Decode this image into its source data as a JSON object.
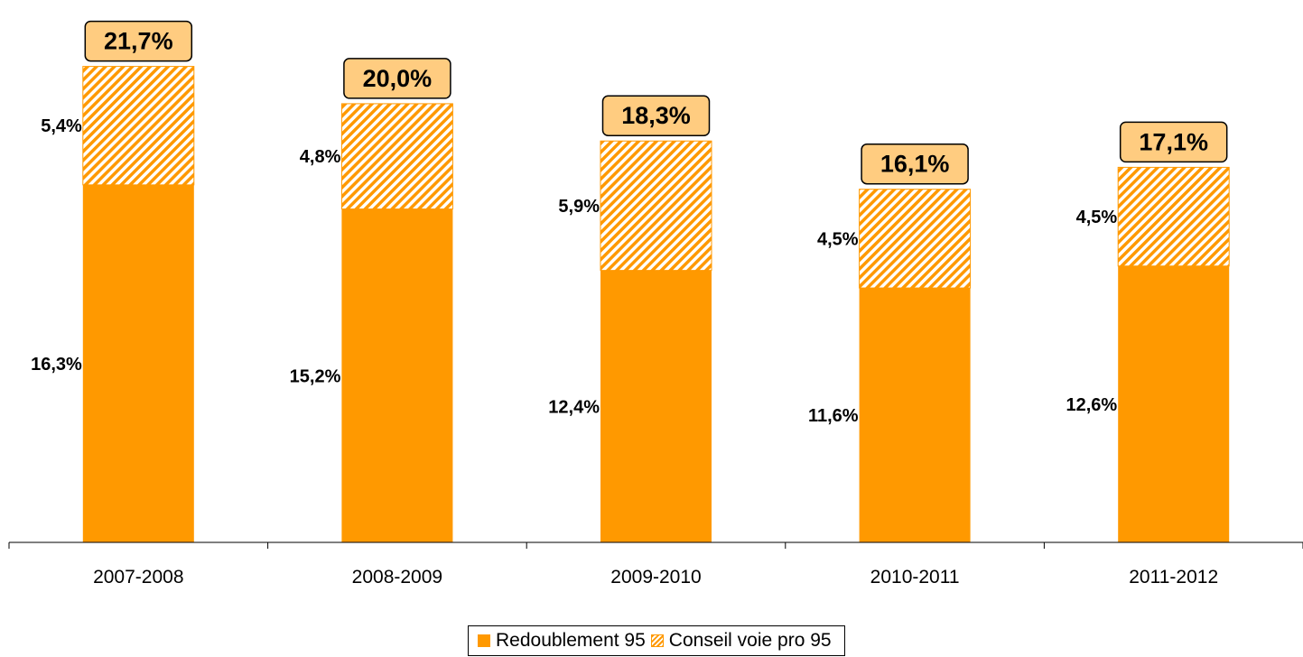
{
  "chart_data": {
    "type": "bar",
    "stacked": true,
    "categories": [
      "2007-2008",
      "2008-2009",
      "2009-2010",
      "2010-2011",
      "2011-2012"
    ],
    "series": [
      {
        "name": "Redoublement 95",
        "values": [
          16.3,
          15.2,
          12.4,
          11.6,
          12.6
        ],
        "labels": [
          "16,3%",
          "15,2%",
          "12,4%",
          "11,6%",
          "12,6%"
        ],
        "color": "#ff9900",
        "fill": "solid"
      },
      {
        "name": "Conseil voie pro 95",
        "values": [
          5.4,
          4.8,
          5.9,
          4.5,
          4.5
        ],
        "labels": [
          "5,4%",
          "4,8%",
          "5,9%",
          "4,5%",
          "4,5%"
        ],
        "color": "#ff9900",
        "fill": "hatched"
      }
    ],
    "totals": [
      21.7,
      20.0,
      18.3,
      16.1,
      17.1
    ],
    "total_labels": [
      "21,7%",
      "20,0%",
      "18,3%",
      "16,1%",
      "17,1%"
    ],
    "total_label_bg": "#ffcc80",
    "ylim": [
      0,
      23
    ],
    "y_axis_visible": false,
    "grid": false,
    "legend_position": "bottom"
  }
}
